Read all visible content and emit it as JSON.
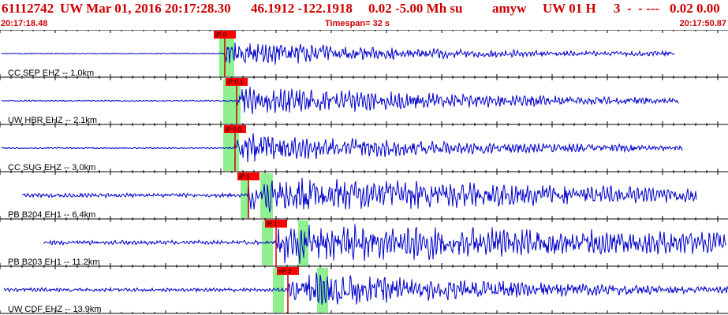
{
  "header": {
    "event_id": "61112742",
    "network_and_date": "UW Mar 01, 2016 20:17:28.30",
    "location": "46.1912 -122.1918",
    "magnitude": "0.02 -5.00 Mh su",
    "analyst": "amyw",
    "solution": "UW 01 H",
    "quality": "3  -  - ---",
    "extra": "0.02 0.00"
  },
  "subheader": {
    "start_time": "20:17:18.48",
    "timespan": "Timespan=  32 s",
    "end_time": "20:17:50.87"
  },
  "colors": {
    "header_text": "#cc0000",
    "trace": "#0000cc",
    "tick": "#000000",
    "pick_box": "#ff0000",
    "pick_line": "#cc0000",
    "window": "#8ff08f"
  },
  "traces": [
    {
      "label": "CC SEP EHZ -- 1.0km",
      "pick": "iP 0",
      "amp": 0.55,
      "decay": 0.45
    },
    {
      "label": "UW HBR EHZ -- 2.1km",
      "pick": "iP 0 1",
      "amp": 0.65,
      "decay": 0.35
    },
    {
      "label": "CC SUG EHZ -- 3.0km",
      "pick": "iP 0 0",
      "amp": 0.6,
      "decay": 0.35
    },
    {
      "label": "PB B204 EH1 -- 6.4km",
      "pick": "iP 1",
      "amp": 0.8,
      "decay": 0.2
    },
    {
      "label": "PB B203 EH1 -- 11.2km",
      "pick": "iP 1",
      "amp": 0.85,
      "decay": 0.15
    },
    {
      "label": "UW CDF EHZ -- 13.9km",
      "pick": "eP 2",
      "amp": 0.75,
      "decay": 0.35
    }
  ]
}
